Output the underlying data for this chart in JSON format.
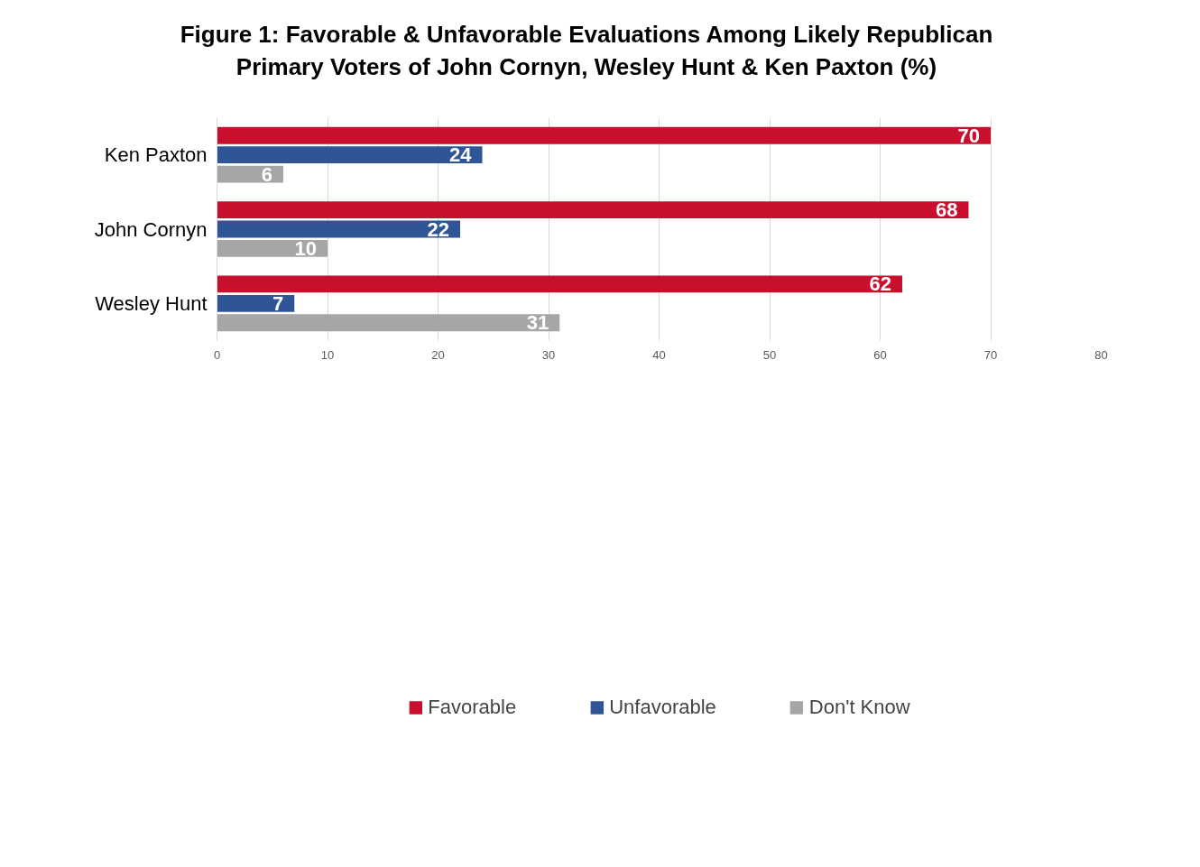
{
  "chart_data": {
    "type": "bar",
    "orientation": "horizontal",
    "title": "Figure 1: Favorable & Unfavorable Evaluations Among Likely Republican Primary Voters of John Cornyn, Wesley Hunt & Ken Paxton (%)",
    "categories": [
      "Ken Paxton",
      "John Cornyn",
      "Wesley Hunt"
    ],
    "series": [
      {
        "name": "Favorable",
        "color": "#c8102e",
        "values": [
          70,
          68,
          62
        ]
      },
      {
        "name": "Unfavorable",
        "color": "#2f5597",
        "values": [
          24,
          22,
          7
        ]
      },
      {
        "name": "Don't Know",
        "color": "#a6a6a6",
        "values": [
          6,
          10,
          31
        ]
      }
    ],
    "xlim": [
      0,
      80
    ],
    "xticks": [
      0,
      10,
      20,
      30,
      40,
      50,
      60,
      70,
      80
    ],
    "grid": "x",
    "legend": "bottom",
    "data_labels": true
  }
}
